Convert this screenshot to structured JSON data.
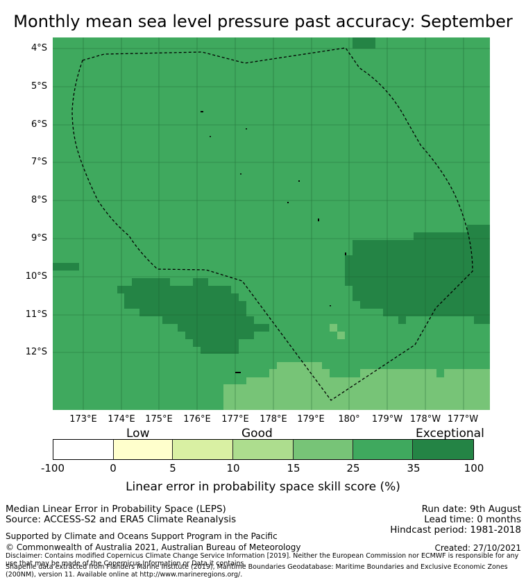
{
  "title": "Monthly mean sea level pressure past accuracy: September",
  "map": {
    "latitude_labels": [
      "4°S",
      "5°S",
      "6°S",
      "7°S",
      "8°S",
      "9°S",
      "10°S",
      "11°S",
      "12°S"
    ],
    "longitude_labels": [
      "173°E",
      "174°E",
      "175°E",
      "176°E",
      "177°E",
      "178°E",
      "179°E",
      "180°",
      "179°W",
      "178°W",
      "177°W"
    ],
    "colors": {
      "exceptional": "#248445",
      "band_25_35": "#3fa95e",
      "band_15_25": "#77c477",
      "band_10_15": "#addd8e",
      "band_5_10": "#d9f0a3",
      "band_0_5": "#ffffcc",
      "band_neg": "#ffffff",
      "eez_boundary": "#000000"
    }
  },
  "legend": {
    "categories": {
      "low": "Low",
      "good": "Good",
      "exceptional": "Exceptional"
    },
    "ticks": [
      "-100",
      "0",
      "5",
      "10",
      "15",
      "25",
      "35",
      "100"
    ],
    "label": "Linear error in probability space skill score (%)"
  },
  "info": {
    "method": "Median Linear Error in Probability Space (LEPS)",
    "source": "Source: ACCESS-S2 and ERA5 Climate Reanalysis",
    "run_date": "Run date: 9th August",
    "lead_time": "Lead time: 0 months",
    "hindcast": "Hindcast period: 1981-2018",
    "support": "Supported by Climate and Oceans Support Program in the Pacific",
    "copyright": "© Commonwealth of Australia 2021, Australian Bureau of Meteorology",
    "created": "Created: 27/10/2021",
    "disclaimer": "Disclaimer: Contains modified Copernicus Climate Change Service Information [2019]. Neither the European Commission nor ECMWF is responsible for any use that may be made of the Copernicus Information or Data it contains.",
    "shapefile": "Shapefile data extracted from Flanders Marine Institute (2019), Maritime Boundaries Geodatabase: Maritime Boundaries and Exclusive Economic Zones (200NM), version 11. Available online at http://www.marineregions.org/."
  }
}
